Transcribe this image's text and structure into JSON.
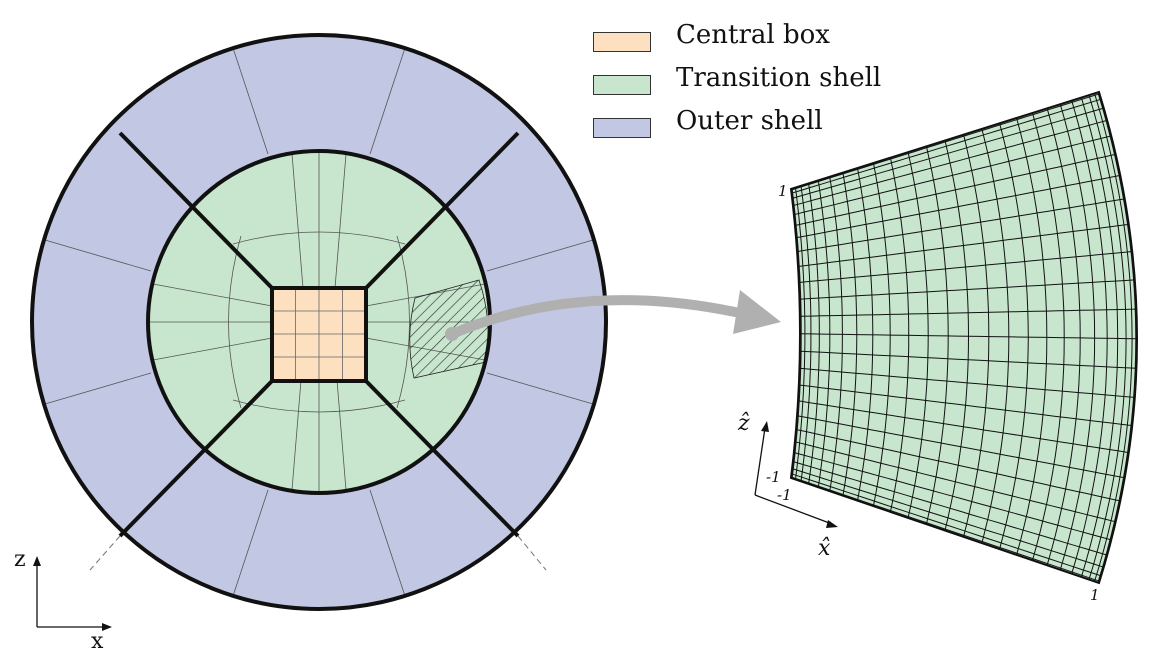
{
  "legend": [
    {
      "label": "Central box",
      "color": "#fde0c0"
    },
    {
      "label": "Transition shell",
      "color": "#c7e6cd"
    },
    {
      "label": "Outer shell",
      "color": "#c2c8e3"
    }
  ],
  "axes": {
    "z_label": "z",
    "x_label": "x"
  },
  "element_axes": {
    "z_hat_label": "ẑ",
    "x_hat_label": "x̂",
    "tick_min": "-1",
    "tick_max": "1"
  },
  "colors": {
    "central": "#fde0c0",
    "transition": "#c7e6cd",
    "outer": "#c2c8e3",
    "stroke": "#111111",
    "arrow": "#b0b0b0"
  }
}
